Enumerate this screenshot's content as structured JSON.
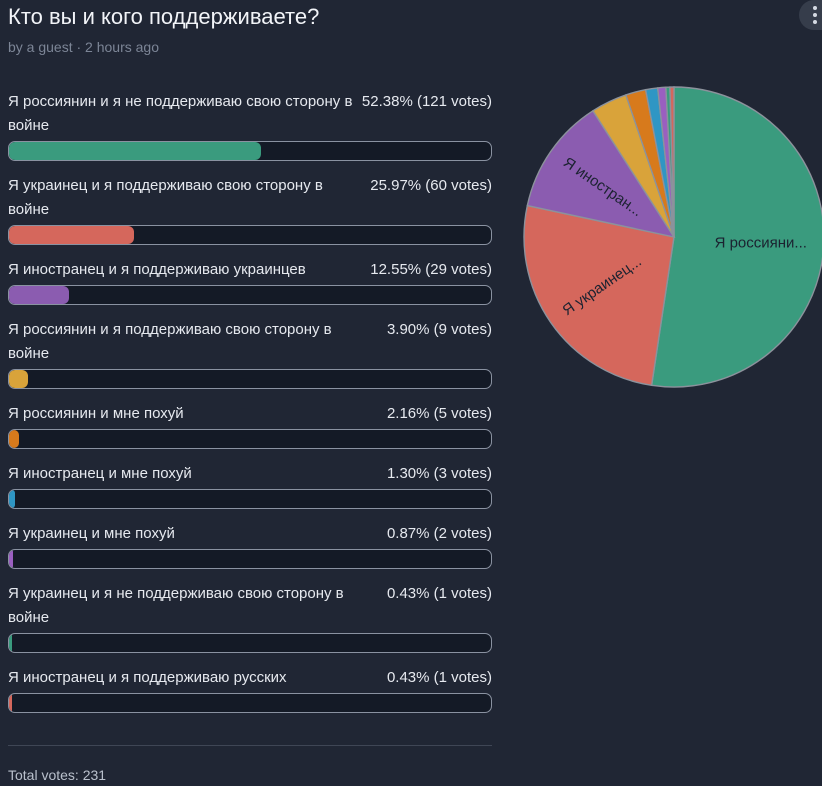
{
  "poll": {
    "title": "Кто вы и кого поддерживаете?",
    "meta": "by a guest · 2 hours ago",
    "total_label": "Total votes: 231"
  },
  "menu": {
    "icon": "more-vertical-icon"
  },
  "options": [
    {
      "label": "Я россиянин и я не поддерживаю свою сторону в войне",
      "stat": "52.38% (121 votes)",
      "percent": 52.38,
      "votes": 121,
      "color": "#3a9b7e"
    },
    {
      "label": "Я украинец и я поддерживаю свою сторону в войне",
      "stat": "25.97% (60 votes)",
      "percent": 25.97,
      "votes": 60,
      "color": "#d5675c"
    },
    {
      "label": "Я иностранец и я поддерживаю украинцев",
      "stat": "12.55% (29 votes)",
      "percent": 12.55,
      "votes": 29,
      "color": "#8b5cb0"
    },
    {
      "label": "Я россиянин и я поддерживаю свою сторону в войне",
      "stat": "3.90% (9 votes)",
      "percent": 3.9,
      "votes": 9,
      "color": "#d9a33a"
    },
    {
      "label": "Я россиянин и мне похуй",
      "stat": "2.16% (5 votes)",
      "percent": 2.16,
      "votes": 5,
      "color": "#d77a1c"
    },
    {
      "label": "Я иностранец и мне похуй",
      "stat": "1.30% (3 votes)",
      "percent": 1.3,
      "votes": 3,
      "color": "#2f96c4"
    },
    {
      "label": "Я украинец и мне похуй",
      "stat": "0.87% (2 votes)",
      "percent": 0.87,
      "votes": 2,
      "color": "#9a5fc0"
    },
    {
      "label": "Я украинец и я не поддерживаю свою сторону в войне",
      "stat": "0.43% (1 votes)",
      "percent": 0.43,
      "votes": 1,
      "color": "#3a9b7e"
    },
    {
      "label": "Я иностранец и я поддерживаю русских",
      "stat": "0.43% (1 votes)",
      "percent": 0.43,
      "votes": 1,
      "color": "#d5675c"
    }
  ],
  "chart_data": {
    "type": "pie",
    "slices": [
      {
        "label": "Я россияни...",
        "value": 121,
        "color": "#3a9b7e"
      },
      {
        "label": "Я украинец...",
        "value": 60,
        "color": "#d5675c"
      },
      {
        "label": "Я иностран...",
        "value": 29,
        "color": "#8b5cb0"
      },
      {
        "label": "",
        "value": 9,
        "color": "#d9a33a"
      },
      {
        "label": "",
        "value": 5,
        "color": "#d77a1c"
      },
      {
        "label": "",
        "value": 3,
        "color": "#2f96c4"
      },
      {
        "label": "",
        "value": 2,
        "color": "#9a5fc0"
      },
      {
        "label": "",
        "value": 1,
        "color": "#3a9b7e"
      },
      {
        "label": "",
        "value": 1,
        "color": "#d5675c"
      }
    ]
  }
}
